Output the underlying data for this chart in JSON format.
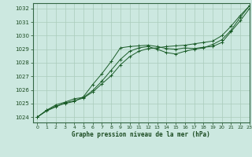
{
  "title": "Graphe pression niveau de la mer (hPa)",
  "background_color": "#cce8e0",
  "grid_color": "#aaccbb",
  "line_color": "#1a5c28",
  "xlim": [
    -0.5,
    23
  ],
  "ylim": [
    1023.6,
    1032.4
  ],
  "yticks": [
    1024,
    1025,
    1026,
    1027,
    1028,
    1029,
    1030,
    1031,
    1032
  ],
  "xticks": [
    0,
    1,
    2,
    3,
    4,
    5,
    6,
    7,
    8,
    9,
    10,
    11,
    12,
    13,
    14,
    15,
    16,
    17,
    18,
    19,
    20,
    21,
    22,
    23
  ],
  "series": [
    [
      1024.0,
      1024.5,
      1024.8,
      1025.0,
      1025.15,
      1025.5,
      1026.4,
      1027.2,
      1028.1,
      1029.1,
      1029.2,
      1029.25,
      1029.3,
      1029.2,
      1029.05,
      1029.0,
      1029.1,
      1029.05,
      1029.15,
      1029.2,
      1029.5,
      1030.3,
      1031.1,
      1032.0
    ],
    [
      1024.0,
      1024.5,
      1024.9,
      1025.1,
      1025.35,
      1025.45,
      1025.95,
      1026.65,
      1027.45,
      1028.25,
      1028.85,
      1029.1,
      1029.2,
      1029.0,
      1028.75,
      1028.65,
      1028.85,
      1029.0,
      1029.1,
      1029.35,
      1029.7,
      1030.4,
      1031.35,
      1032.2
    ],
    [
      1024.0,
      1024.45,
      1024.75,
      1025.05,
      1025.2,
      1025.4,
      1025.85,
      1026.45,
      1027.05,
      1027.85,
      1028.45,
      1028.85,
      1029.05,
      1029.1,
      1029.2,
      1029.25,
      1029.3,
      1029.4,
      1029.5,
      1029.6,
      1030.0,
      1030.7,
      1031.5,
      1032.2
    ]
  ]
}
